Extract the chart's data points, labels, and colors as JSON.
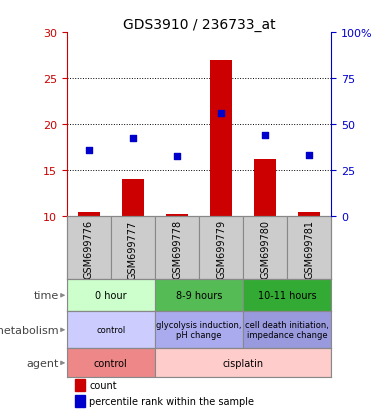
{
  "title": "GDS3910 / 236733_at",
  "samples": [
    "GSM699776",
    "GSM699777",
    "GSM699778",
    "GSM699779",
    "GSM699780",
    "GSM699781"
  ],
  "bar_values": [
    10.5,
    14.0,
    10.2,
    27.0,
    16.2,
    10.5
  ],
  "dot_values": [
    17.2,
    18.5,
    16.5,
    21.2,
    18.8,
    16.6
  ],
  "ylim_left": [
    10,
    30
  ],
  "ylim_right": [
    0,
    100
  ],
  "yticks_left": [
    10,
    15,
    20,
    25,
    30
  ],
  "yticks_right": [
    0,
    25,
    50,
    75,
    100
  ],
  "ytick_labels_right": [
    "0",
    "25",
    "50",
    "75",
    "100%"
  ],
  "bar_color": "#CC0000",
  "dot_color": "#0000CC",
  "bar_width": 0.5,
  "plot_bg": "#ffffff",
  "sample_strip_color": "#cccccc",
  "time_groups": [
    {
      "label": "0 hour",
      "start": 0,
      "end": 2,
      "color": "#ccffcc"
    },
    {
      "label": "8-9 hours",
      "start": 2,
      "end": 4,
      "color": "#55bb55"
    },
    {
      "label": "10-11 hours",
      "start": 4,
      "end": 6,
      "color": "#33aa33"
    }
  ],
  "metabolism_groups": [
    {
      "label": "control",
      "start": 0,
      "end": 2,
      "color": "#ccccff"
    },
    {
      "label": "glycolysis induction,\npH change",
      "start": 2,
      "end": 4,
      "color": "#aaaaee"
    },
    {
      "label": "cell death initiation,\nimpedance change",
      "start": 4,
      "end": 6,
      "color": "#9999dd"
    }
  ],
  "agent_groups": [
    {
      "label": "control",
      "start": 0,
      "end": 2,
      "color": "#ee8888"
    },
    {
      "label": "cisplatin",
      "start": 2,
      "end": 6,
      "color": "#ffcccc"
    }
  ],
  "row_labels": [
    "time",
    "metabolism",
    "agent"
  ],
  "left_tick_color": "#CC0000",
  "right_tick_color": "#0000CC",
  "separator_color": "#888888",
  "legend_bar_label": "count",
  "legend_dot_label": "percentile rank within the sample"
}
